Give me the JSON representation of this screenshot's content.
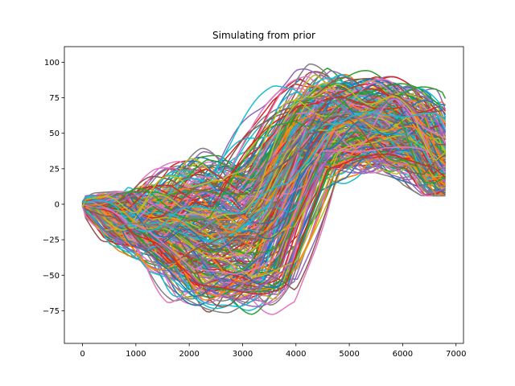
{
  "chart_data": {
    "type": "line",
    "title": "Simulating from prior",
    "xlabel": "",
    "ylabel": "",
    "xlim": [
      -340,
      7140
    ],
    "ylim": [
      -98,
      111
    ],
    "x_ticks": [
      0,
      1000,
      2000,
      3000,
      4000,
      5000,
      6000,
      7000
    ],
    "x_tick_labels": [
      "0",
      "1000",
      "2000",
      "3000",
      "4000",
      "5000",
      "6000",
      "7000"
    ],
    "y_ticks": [
      -75,
      -50,
      -25,
      0,
      25,
      50,
      75,
      100
    ],
    "y_tick_labels": [
      "−75",
      "−50",
      "−25",
      "0",
      "25",
      "50",
      "75",
      "100"
    ],
    "grid": false,
    "legend": "none",
    "n_series": 300,
    "x_range": [
      0,
      6800
    ],
    "palette": [
      "#1f77b4",
      "#ff7f0e",
      "#2ca02c",
      "#d62728",
      "#9467bd",
      "#8c564b",
      "#e377c2",
      "#7f7f7f",
      "#bcbd22",
      "#17becf"
    ],
    "envelope": {
      "x": [
        0,
        400,
        800,
        1200,
        1600,
        2000,
        2400,
        2800,
        3200,
        3600,
        4000,
        4400,
        4800,
        5200,
        5600,
        6000,
        6400,
        6800
      ],
      "upper": [
        3,
        8,
        9,
        8,
        30,
        47,
        48,
        40,
        62,
        85,
        98,
        101,
        96,
        95,
        92,
        88,
        82,
        42
      ],
      "lower": [
        -2,
        -8,
        -28,
        -35,
        -55,
        -76,
        -80,
        -82,
        -87,
        -86,
        -40,
        10,
        18,
        22,
        24,
        20,
        15,
        6
      ],
      "center": [
        0,
        0,
        -3,
        -12,
        -22,
        -42,
        -45,
        -40,
        -35,
        -10,
        40,
        62,
        60,
        55,
        52,
        48,
        40,
        22
      ]
    }
  }
}
